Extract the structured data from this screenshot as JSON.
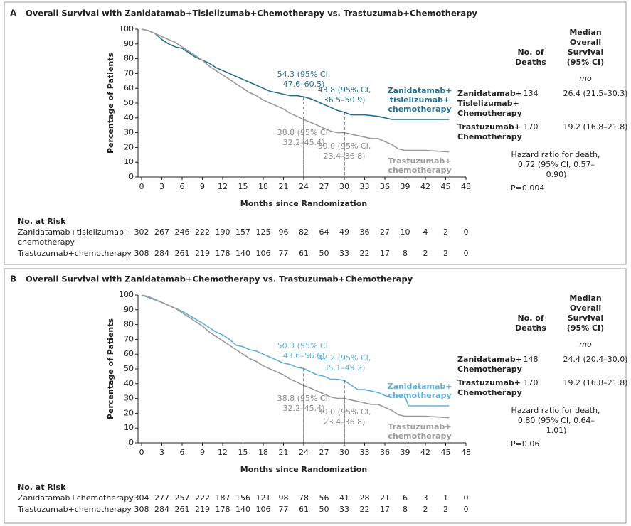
{
  "chart_data": [
    {
      "type": "line",
      "panel": "A",
      "title": "Overall Survival with Zanidatamab+Tislelizumab+Chemotherapy vs. Trastuzumab+Chemotherapy",
      "xlabel": "Months since Randomization",
      "ylabel": "Percentage of Patients",
      "xlim": [
        0,
        48
      ],
      "ylim": [
        0,
        100
      ],
      "xticks": [
        0,
        3,
        6,
        9,
        12,
        15,
        18,
        21,
        24,
        27,
        30,
        33,
        36,
        39,
        42,
        45,
        48
      ],
      "yticks": [
        0,
        10,
        20,
        30,
        40,
        50,
        60,
        70,
        80,
        90,
        100
      ],
      "series": [
        {
          "name": "Zanidatamab+ tislelizumab+ chemotherapy",
          "color": "#25708f",
          "x": [
            0,
            1,
            2,
            3,
            4,
            5,
            6,
            7,
            8,
            9,
            10,
            11,
            12,
            13,
            14,
            15,
            16,
            17,
            18,
            19,
            20,
            21,
            22,
            23,
            24,
            25,
            26,
            27,
            28,
            29,
            30,
            31,
            33,
            35,
            36,
            37,
            39,
            42,
            45.5
          ],
          "values": [
            100,
            99,
            97,
            93,
            90,
            88,
            87,
            84,
            81,
            79,
            77,
            74,
            72,
            70,
            68,
            66,
            64,
            62,
            60,
            58,
            57,
            56,
            55,
            55,
            54.3,
            53,
            51,
            49,
            47,
            45,
            43.8,
            42,
            42,
            41,
            40,
            39,
            39,
            39,
            39
          ]
        },
        {
          "name": "Trastuzumab+ chemotherapy",
          "color": "#9a9a9a",
          "x": [
            0,
            1,
            2,
            3,
            4,
            5,
            6,
            7,
            8,
            9,
            10,
            11,
            12,
            13,
            14,
            15,
            16,
            17,
            18,
            19,
            20,
            21,
            22,
            23,
            24,
            25,
            26,
            27,
            28,
            29,
            30,
            31,
            32,
            33,
            34,
            35,
            36,
            37,
            38,
            39,
            42,
            45.5
          ],
          "values": [
            100,
            99,
            97,
            95,
            93,
            91,
            88,
            85,
            82,
            79,
            75,
            72,
            69,
            66,
            63,
            60,
            57,
            55,
            52,
            50,
            48,
            46,
            43,
            41,
            38.8,
            37,
            35,
            33,
            31,
            30,
            30.0,
            29,
            28,
            27,
            26,
            26,
            24,
            22,
            19,
            18,
            18,
            17
          ]
        }
      ],
      "annotations": [
        {
          "text": "54.3 (95% CI, 47.6–60.5)",
          "x": 24,
          "y": 54.3,
          "color": "#25708f"
        },
        {
          "text": "43.8 (95% CI, 36.5–50.9)",
          "x": 30,
          "y": 43.8,
          "color": "#25708f"
        },
        {
          "text": "38.8 (95% CI, 32.2–45.4)",
          "x": 24,
          "y": 38.8,
          "color": "#8a8a8a"
        },
        {
          "text": "30.0 (95% CI, 23.4–36.8)",
          "x": 30,
          "y": 30.0,
          "color": "#8a8a8a"
        }
      ],
      "summary": {
        "deaths_header": "No. of Deaths",
        "median_header": "Median Overall Survival (95% CI)",
        "unit": "mo",
        "rows": [
          {
            "group": "Zanidatamab+ Tislelizumab+ Chemotherapy",
            "deaths": 134,
            "median": "26.4 (21.5–30.3)"
          },
          {
            "group": "Trastuzumab+ Chemotherapy",
            "deaths": 170,
            "median": "19.2 (16.8–21.8)"
          }
        ],
        "hazard": "Hazard ratio for death, 0.72 (95% CI, 0.57–0.90)",
        "p": "P=0.004"
      },
      "risk": {
        "title": "No. at Risk",
        "rows": [
          {
            "name": "Zanidatamab+tislelizumab+ chemotherapy",
            "counts": [
              302,
              267,
              246,
              222,
              190,
              157,
              125,
              96,
              82,
              64,
              49,
              36,
              27,
              10,
              4,
              2,
              0
            ]
          },
          {
            "name": "Trastuzumab+chemotherapy",
            "counts": [
              308,
              284,
              261,
              219,
              178,
              140,
              106,
              77,
              61,
              50,
              33,
              22,
              17,
              8,
              2,
              2,
              0
            ]
          }
        ]
      }
    },
    {
      "type": "line",
      "panel": "B",
      "title": "Overall Survival with Zanidatamab+Chemotherapy vs. Trastuzumab+Chemotherapy",
      "xlabel": "Months since Randomization",
      "ylabel": "Percentage of Patients",
      "xlim": [
        0,
        48
      ],
      "ylim": [
        0,
        100
      ],
      "xticks": [
        0,
        3,
        6,
        9,
        12,
        15,
        18,
        21,
        24,
        27,
        30,
        33,
        36,
        39,
        42,
        45,
        48
      ],
      "yticks": [
        0,
        10,
        20,
        30,
        40,
        50,
        60,
        70,
        80,
        90,
        100
      ],
      "series": [
        {
          "name": "Zanidatamab+ chemotherapy",
          "color": "#62b0d6",
          "x": [
            0,
            3,
            6,
            9,
            10,
            11,
            12,
            13,
            14,
            15,
            16,
            17,
            18,
            19,
            20,
            21,
            22,
            23,
            24,
            25,
            26,
            27,
            28,
            29,
            30,
            31,
            32,
            33,
            34,
            35,
            36,
            37,
            39,
            39.5,
            42,
            45.5
          ],
          "values": [
            100,
            95,
            89,
            81,
            78,
            75,
            73,
            70,
            66,
            65,
            63,
            62,
            60,
            58,
            56,
            54,
            53,
            51,
            50.3,
            48,
            46,
            45,
            43,
            43,
            42.2,
            39,
            36,
            36,
            35,
            34,
            32,
            31,
            31,
            25,
            25,
            25
          ]
        },
        {
          "name": "Trastuzumab+ chemotherapy",
          "color": "#9a9a9a",
          "x": [
            0,
            1,
            2,
            3,
            4,
            5,
            6,
            7,
            8,
            9,
            10,
            11,
            12,
            13,
            14,
            15,
            16,
            17,
            18,
            19,
            20,
            21,
            22,
            23,
            24,
            25,
            26,
            27,
            28,
            29,
            30,
            31,
            32,
            33,
            34,
            35,
            36,
            37,
            38,
            39,
            42,
            45.5
          ],
          "values": [
            100,
            99,
            97,
            95,
            93,
            91,
            88,
            85,
            82,
            79,
            75,
            72,
            69,
            66,
            63,
            60,
            57,
            55,
            52,
            50,
            48,
            46,
            43,
            41,
            38.8,
            37,
            35,
            33,
            31,
            30,
            30.0,
            29,
            28,
            27,
            26,
            26,
            24,
            22,
            19,
            18,
            18,
            17
          ]
        }
      ],
      "annotations": [
        {
          "text": "50.3 (95% CI, 43.6–56.6)",
          "x": 24,
          "y": 50.3,
          "color": "#62b0d6"
        },
        {
          "text": "42.2 (95% CI, 35.1–49.2)",
          "x": 30,
          "y": 42.2,
          "color": "#62b0d6"
        },
        {
          "text": "38.8 (95% CI, 32.2–45.4)",
          "x": 24,
          "y": 38.8,
          "color": "#8a8a8a"
        },
        {
          "text": "30.0 (95% CI, 23.4–36.8)",
          "x": 30,
          "y": 30.0,
          "color": "#8a8a8a"
        }
      ],
      "summary": {
        "deaths_header": "No. of Deaths",
        "median_header": "Median Overall Survival (95% CI)",
        "unit": "mo",
        "rows": [
          {
            "group": "Zanidatamab+ Chemotherapy",
            "deaths": 148,
            "median": "24.4 (20.4–30.0)"
          },
          {
            "group": "Trastuzumab+ Chemotherapy",
            "deaths": 170,
            "median": "19.2 (16.8–21.8)"
          }
        ],
        "hazard": "Hazard ratio for death, 0.80 (95% CI, 0.64–1.01)",
        "p": "P=0.06"
      },
      "risk": {
        "title": "No. at Risk",
        "rows": [
          {
            "name": "Zanidatamab+chemotherapy",
            "counts": [
              304,
              277,
              257,
              222,
              187,
              156,
              121,
              98,
              78,
              56,
              41,
              28,
              21,
              6,
              3,
              1,
              0
            ]
          },
          {
            "name": "Trastuzumab+chemotherapy",
            "counts": [
              308,
              284,
              261,
              219,
              178,
              140,
              106,
              77,
              61,
              50,
              33,
              22,
              17,
              8,
              2,
              2,
              0
            ]
          }
        ]
      }
    }
  ]
}
